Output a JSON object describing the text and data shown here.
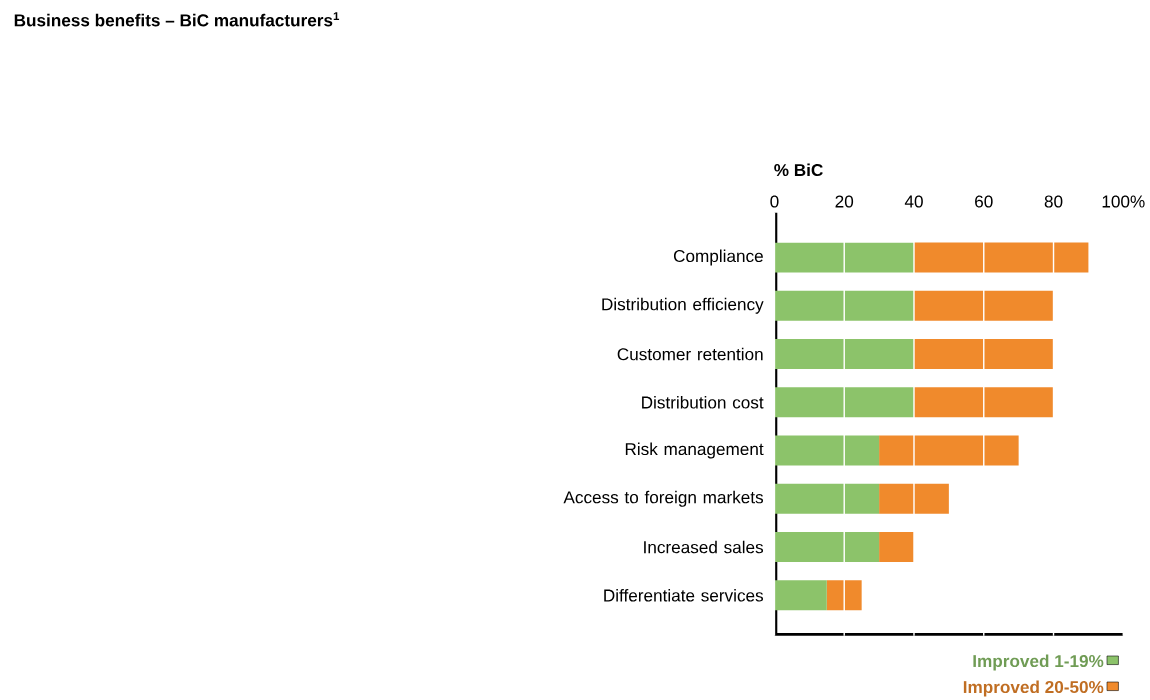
{
  "chart_data": {
    "type": "bar",
    "orientation": "horizontal",
    "stacked": true,
    "title": "Business benefits – BiC manufacturers$^{1}$",
    "xlabel": "% BiC",
    "categories": [
      "Compliance",
      "Distribution efficiency",
      "Customer retention",
      "Distribution cost",
      "Risk management",
      "Access to foreign markets",
      "Increased sales",
      "Differentiate services"
    ],
    "series": [
      {
        "name": "Improved 1-19%",
        "color": "#8cc36a",
        "values": [
          40,
          40,
          40,
          40,
          30,
          30,
          30,
          15
        ]
      },
      {
        "name": "Improved 20-50%",
        "color": "#f08a2c",
        "values": [
          50,
          40,
          40,
          40,
          40,
          20,
          10,
          10
        ]
      }
    ],
    "xlim": [
      0,
      100
    ],
    "xticks": [
      0,
      20,
      40,
      60,
      80,
      {
        "value": 100,
        "label": "100%"
      }
    ],
    "grid": "x",
    "legend": "bottom right"
  }
}
